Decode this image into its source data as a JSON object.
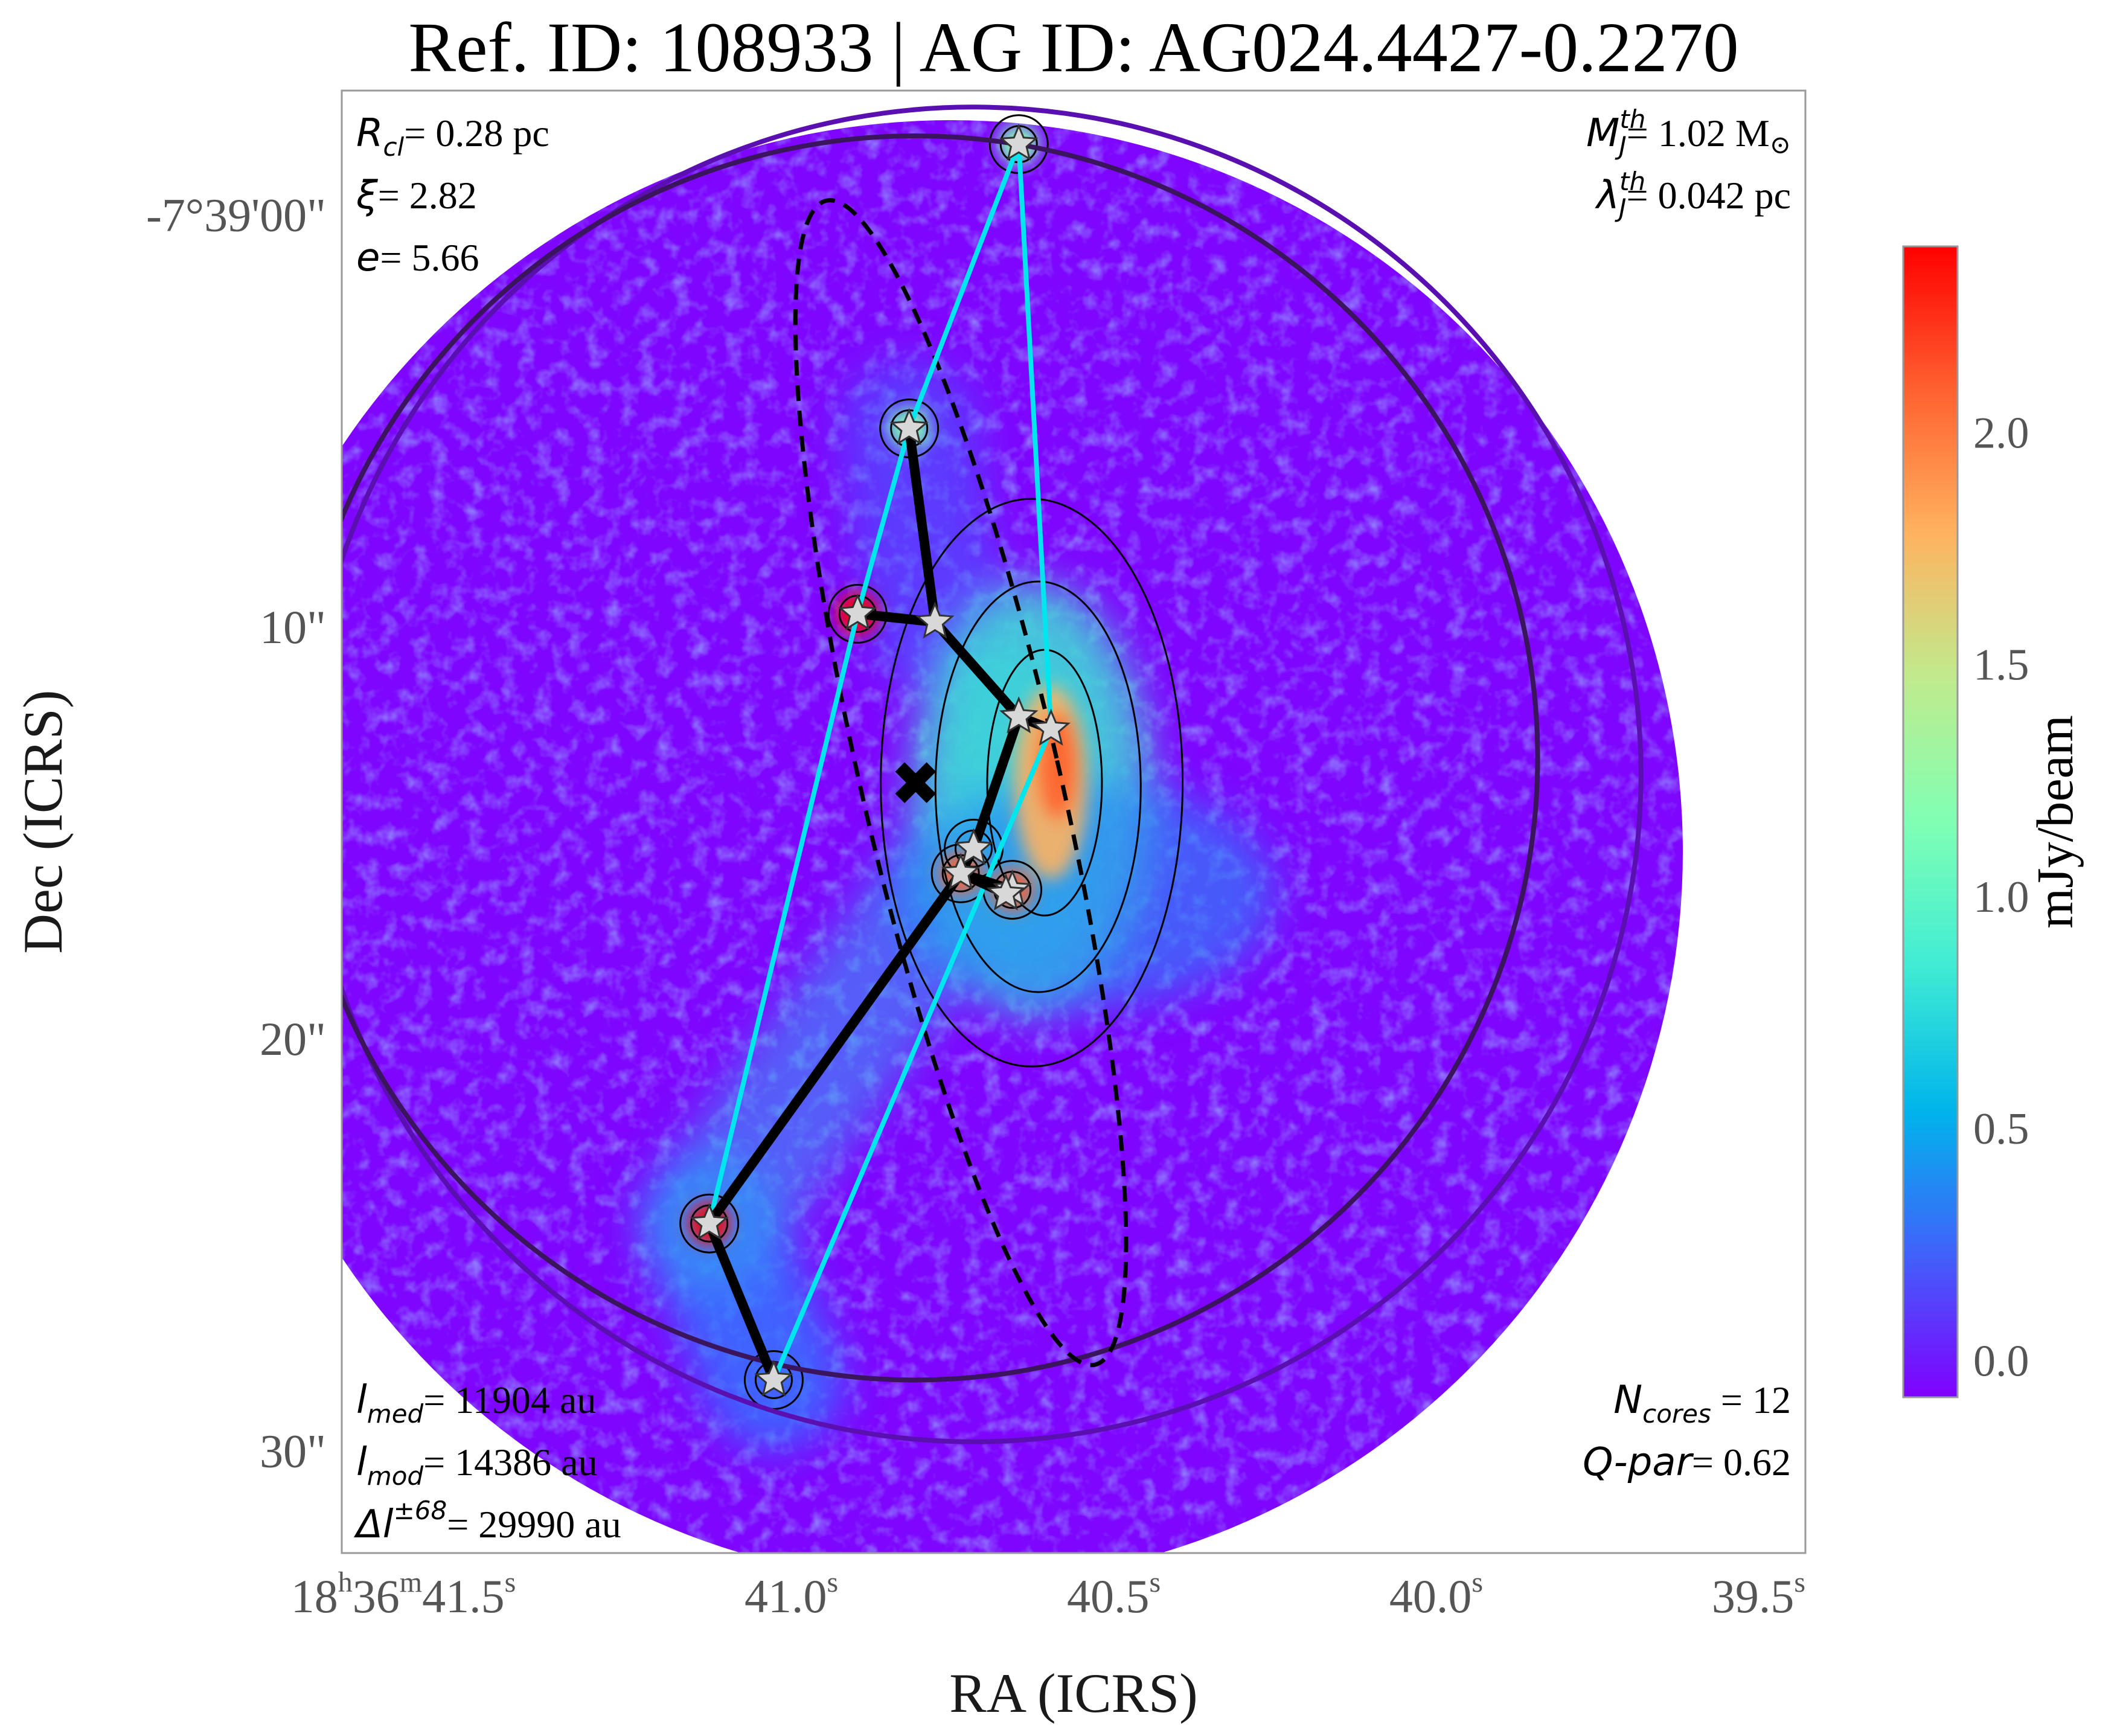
{
  "title": "Ref. ID: 108933 | AG ID: AG024.4427-0.2270",
  "chart_data": {
    "type": "heatmap",
    "xlabel": "RA (ICRS)",
    "ylabel": "Dec (ICRS)",
    "x_ticks": [
      {
        "h": "18",
        "m": "36",
        "s": "41.5",
        "value": 41.5
      },
      {
        "s": "41.0",
        "value": 41.0
      },
      {
        "s": "40.5",
        "value": 40.5
      },
      {
        "s": "40.0",
        "value": 40.0
      },
      {
        "s": "39.5",
        "value": 39.5
      }
    ],
    "y_ticks": [
      {
        "label": "-7°39'00\"",
        "value": 0
      },
      {
        "label": "10\"",
        "value": 10
      },
      {
        "label": "20\"",
        "value": 20
      },
      {
        "label": "30\"",
        "value": 30
      }
    ],
    "ra_range_s": [
      41.77,
      39.5
    ],
    "dec_range_arcsec": [
      -3.0,
      32.5
    ],
    "colorbar": {
      "label": "mJy/beam",
      "range": [
        -0.08,
        2.4
      ],
      "ticks": [
        "0.0",
        "0.5",
        "1.0",
        "1.5",
        "2.0"
      ],
      "tick_values": [
        0.0,
        0.5,
        1.0,
        1.5,
        2.0
      ],
      "colormap": "rainbow",
      "colors": [
        "#8000ff",
        "#4062fa",
        "#00b5eb",
        "#40ecd4",
        "#80ffb4",
        "#c0eb8d",
        "#ffb360",
        "#ff6130",
        "#ff0000"
      ]
    },
    "cores": [
      {
        "ra": 40.72,
        "dec": -1.7
      },
      {
        "ra": 40.89,
        "dec": 5.2
      },
      {
        "ra": 40.97,
        "dec": 9.7
      },
      {
        "ra": 40.85,
        "dec": 9.9
      },
      {
        "ra": 40.72,
        "dec": 12.2
      },
      {
        "ra": 40.67,
        "dec": 12.5
      },
      {
        "ra": 40.79,
        "dec": 15.4
      },
      {
        "ra": 40.81,
        "dec": 16.0
      },
      {
        "ra": 40.73,
        "dec": 16.4
      },
      {
        "ra": 40.74,
        "dec": 16.5
      },
      {
        "ra": 41.2,
        "dec": 24.5
      },
      {
        "ra": 41.1,
        "dec": 28.3
      }
    ],
    "mst_edges": [
      [
        1,
        3
      ],
      [
        2,
        3
      ],
      [
        3,
        4
      ],
      [
        4,
        5
      ],
      [
        4,
        6
      ],
      [
        6,
        7
      ],
      [
        7,
        8
      ],
      [
        7,
        9
      ],
      [
        7,
        10
      ],
      [
        10,
        11
      ]
    ],
    "convex_hull": [
      0,
      1,
      2,
      10,
      11,
      5
    ],
    "centroid": {
      "ra": 40.88,
      "dec": 13.8
    },
    "fit_ellipse": {
      "center_ra": 40.81,
      "center_dec": 13.8,
      "semi_major_arcsec": 14.5,
      "semi_minor_arcsec": 2.4,
      "pa_deg": 167
    },
    "cluster_circle": {
      "center_ra": 40.88,
      "center_dec": 13.2,
      "radius_arcsec": 15.1,
      "color": "#3a145c"
    },
    "outer_circle": {
      "center_ra": 40.79,
      "center_dec": 13.6,
      "radius_arcsec": 16.2,
      "color": "#5a0fb0"
    },
    "hull_color": "#00e5ee",
    "mst_color": "#000000"
  },
  "annotations": {
    "top_left": [
      {
        "sym": "R",
        "sub": "cl",
        "text": "= 0.28 pc"
      },
      {
        "sym": "ξ",
        "sub": "",
        "text": "= 2.82"
      },
      {
        "sym": "e",
        "sub": "",
        "text": "= 5.66"
      }
    ],
    "top_right": [
      {
        "sym": "M",
        "sub": "J",
        "sup": "th",
        "text": "= 1.02 M",
        "unit": "⊙"
      },
      {
        "sym": "λ",
        "sub": "J",
        "sup": "th",
        "text": "= 0.042 pc"
      }
    ],
    "bottom_left": [
      {
        "sym": "l",
        "sub": "med",
        "text": "= 11904 au"
      },
      {
        "sym": "l",
        "sub": "mod",
        "text": "= 14386 au"
      },
      {
        "sym": "Δl",
        "sup": "±68",
        "text": "= 29990 au"
      }
    ],
    "bottom_right": [
      {
        "sym": "N",
        "sub": "cores",
        "text": " = 12"
      },
      {
        "sym": "Q-par",
        "sub": "",
        "text": "= 0.62"
      }
    ]
  }
}
